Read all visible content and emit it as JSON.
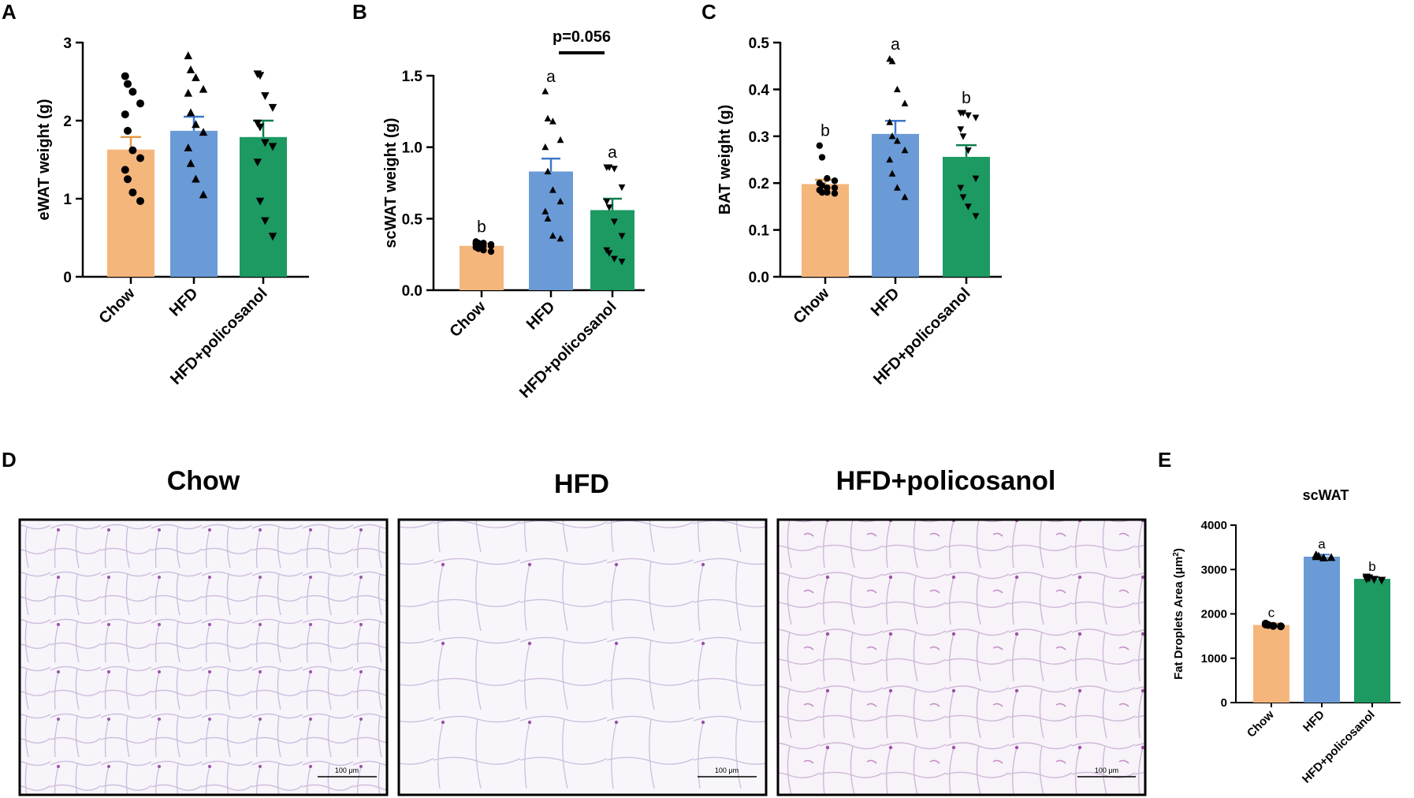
{
  "panels": {
    "A": "A",
    "B": "B",
    "C": "C",
    "D": "D",
    "E": "E"
  },
  "colors": {
    "chow": "#F5B67C",
    "hfd": "#6A9BD6",
    "hfd_policosanol": "#1C9A62",
    "chow_err": "#E59A4C",
    "hfd_err": "#3C78C8",
    "hfd_policosanol_err": "#0F7D4C",
    "cell_bg": "#F7F4FA",
    "cell_wall": "#C9B8D8",
    "nucleus": "#8A3E9A"
  },
  "chart_data": [
    {
      "id": "A",
      "type": "bar",
      "title": "",
      "ylabel": "eWAT weight (g)",
      "ylim": [
        0,
        3
      ],
      "yticks": [
        0,
        1,
        2,
        3
      ],
      "categories": [
        "Chow",
        "HFD",
        "HFD+policosanol"
      ],
      "values": [
        1.63,
        1.87,
        1.79
      ],
      "errors": [
        0.16,
        0.18,
        0.21
      ],
      "markers": [
        "circle",
        "triangle-up",
        "triangle-down"
      ],
      "points": [
        [
          2.57,
          2.47,
          2.37,
          2.22,
          2.08,
          1.87,
          1.62,
          1.52,
          1.37,
          1.25,
          1.08,
          0.97
        ],
        [
          2.83,
          2.65,
          2.55,
          2.4,
          2.35,
          2.1,
          1.95,
          1.85,
          1.65,
          1.45,
          1.25,
          1.05
        ],
        [
          2.6,
          2.58,
          2.32,
          2.17,
          1.97,
          1.92,
          1.72,
          1.67,
          1.47,
          0.97,
          0.72,
          0.52
        ]
      ],
      "sig_letters": [
        "",
        "",
        ""
      ],
      "grid": false
    },
    {
      "id": "B",
      "type": "bar",
      "title": "",
      "ylabel": "scWAT weight (g)",
      "ylim": [
        0,
        1.5
      ],
      "yticks": [
        0.0,
        0.5,
        1.0,
        1.5
      ],
      "ytick_labels": [
        "0.0",
        "0.5",
        "1.0",
        "1.5"
      ],
      "categories": [
        "Chow",
        "HFD",
        "HFD+policosanol"
      ],
      "values": [
        0.31,
        0.83,
        0.56
      ],
      "errors": [
        0.015,
        0.09,
        0.08
      ],
      "markers": [
        "circle",
        "triangle-up",
        "triangle-down"
      ],
      "points": [
        [
          0.34,
          0.33,
          0.33,
          0.32,
          0.32,
          0.32,
          0.31,
          0.31,
          0.3,
          0.29,
          0.28,
          0.27
        ],
        [
          1.39,
          1.2,
          1.18,
          1.05,
          1.0,
          0.83,
          0.7,
          0.62,
          0.55,
          0.5,
          0.38,
          0.36
        ],
        [
          0.86,
          0.86,
          0.85,
          0.72,
          0.62,
          0.58,
          0.48,
          0.38,
          0.28,
          0.26,
          0.22,
          0.2
        ]
      ],
      "sig_letters": [
        "b",
        "a",
        "a"
      ],
      "bracket": {
        "from": 1,
        "to": 2,
        "value": 1.66,
        "label": "p=0.056"
      },
      "grid": false
    },
    {
      "id": "C",
      "type": "bar",
      "title": "",
      "ylabel": "BAT weight (g)",
      "ylim": [
        0,
        0.5
      ],
      "yticks": [
        0.0,
        0.1,
        0.2,
        0.3,
        0.4,
        0.5
      ],
      "ytick_labels": [
        "0.0",
        "0.1",
        "0.2",
        "0.3",
        "0.4",
        "0.5"
      ],
      "categories": [
        "Chow",
        "HFD",
        "HFD+policosanol"
      ],
      "values": [
        0.198,
        0.305,
        0.256
      ],
      "errors": [
        0.009,
        0.028,
        0.025
      ],
      "markers": [
        "circle",
        "triangle-up",
        "triangle-down"
      ],
      "points": [
        [
          0.28,
          0.255,
          0.21,
          0.205,
          0.2,
          0.195,
          0.19,
          0.19,
          0.185,
          0.18,
          0.18,
          0.178
        ],
        [
          0.465,
          0.46,
          0.4,
          0.37,
          0.33,
          0.3,
          0.29,
          0.27,
          0.25,
          0.22,
          0.19,
          0.17
        ],
        [
          0.35,
          0.35,
          0.345,
          0.34,
          0.315,
          0.3,
          0.27,
          0.21,
          0.19,
          0.17,
          0.15,
          0.13
        ]
      ],
      "sig_letters": [
        "b",
        "a",
        "b"
      ],
      "grid": false
    },
    {
      "id": "E",
      "type": "bar",
      "title": "scWAT",
      "ylabel": "Fat Droplets Area (μm²)",
      "ylabel_main": "Fat Droplets Area (μm",
      "ylabel_sup": "2",
      "ylabel_tail": ")",
      "ylim": [
        0,
        4000
      ],
      "yticks": [
        0,
        1000,
        2000,
        3000,
        4000
      ],
      "categories": [
        "Chow",
        "HFD",
        "HFD+policosanol"
      ],
      "values": [
        1750,
        3290,
        2790
      ],
      "errors": [
        35,
        45,
        35
      ],
      "markers": [
        "circle",
        "triangle-up",
        "triangle-down"
      ],
      "points": [
        [
          1780,
          1750,
          1730,
          1720,
          1760
        ],
        [
          3330,
          3300,
          3260,
          3270,
          3290
        ],
        [
          2830,
          2810,
          2780,
          2760,
          2790
        ]
      ],
      "sig_letters": [
        "c",
        "a",
        "b"
      ],
      "grid": false
    }
  ],
  "micrographs": {
    "titles": [
      "Chow",
      "HFD",
      "HFD+policosanol"
    ],
    "scalebar": "100 μm"
  }
}
